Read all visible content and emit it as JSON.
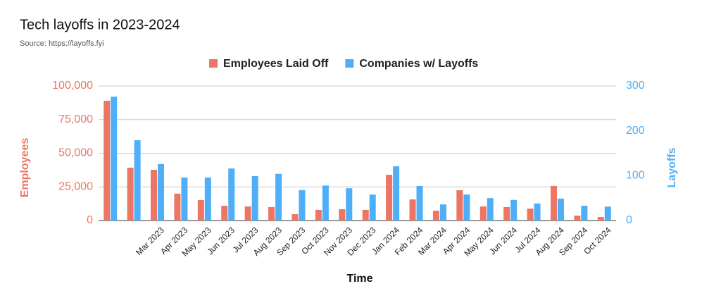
{
  "chart_data": {
    "type": "bar",
    "title": "Tech layoffs in 2023-2024",
    "subtitle": "Source: https://layoffs.fyi",
    "x_label": "Time",
    "y_label": "Employees",
    "y2_label": "Layoffs",
    "categories": [
      null,
      null,
      "Mar 2023",
      "Apr 2023",
      "May 2023",
      "Jun 2023",
      "Jul 2023",
      "Aug 2023",
      "Sep 2023",
      "Oct 2023",
      "Nov 2023",
      "Dec 2023",
      "Jan 2024",
      "Feb 2024",
      "Mar 2024",
      "Apr 2024",
      "May 2024",
      "Jun 2024",
      "Jul 2024",
      "Aug 2024",
      "Sep 2024",
      "Oct 2024"
    ],
    "series": [
      {
        "name": "Employees Laid Off",
        "color": "#ec7563",
        "values": [
          89000,
          39300,
          37700,
          20000,
          15200,
          11000,
          10500,
          10000,
          4700,
          7900,
          8400,
          7900,
          34000,
          15700,
          7300,
          22500,
          10500,
          10000,
          8900,
          25700,
          3700,
          2600
        ]
      },
      {
        "name": "Companies w/ Layoffs",
        "color": "#4eaef7",
        "axis": "y2",
        "values": [
          276,
          179,
          126,
          96,
          96,
          116,
          99,
          104,
          68,
          78,
          72,
          58,
          121,
          77,
          36,
          58,
          50,
          46,
          38,
          49,
          33,
          31
        ]
      }
    ],
    "ylim": [
      0,
      100000
    ],
    "yticks": [
      0,
      {
        "value": 25000,
        "label": "25,000"
      },
      {
        "value": 50000,
        "label": "50,000"
      },
      {
        "value": 75000,
        "label": "75,000"
      },
      {
        "value": 100000,
        "label": "100,000"
      }
    ],
    "y2lim": [
      0,
      300
    ],
    "y2ticks": [
      0,
      100,
      200,
      300
    ],
    "grid": true,
    "legend": "top"
  }
}
